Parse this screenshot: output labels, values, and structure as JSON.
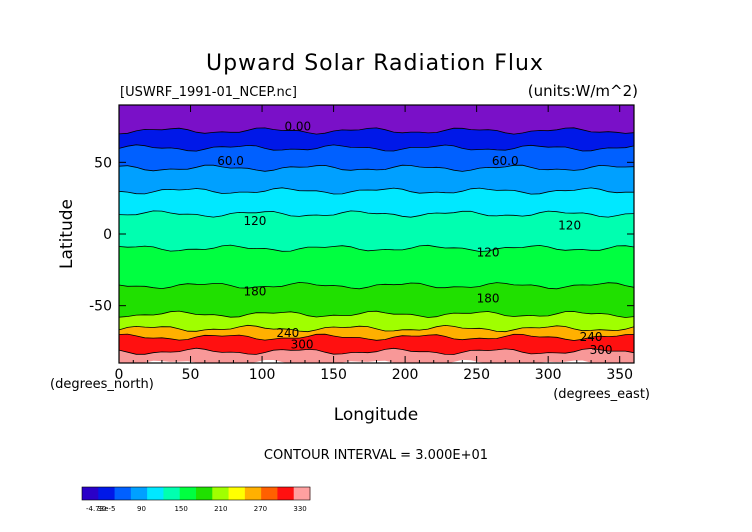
{
  "chart_data": {
    "type": "heatmap",
    "title": "Upward Solar Radiation Flux",
    "file_label": "[USWRF_1991-01_NCEP.nc]",
    "units_label": "(units:W/m^2)",
    "xlabel": "Longitude",
    "x_unit": "(degrees_east)",
    "ylabel": "Latitude",
    "y_unit": "(degrees_north)",
    "xlim": [
      0,
      360
    ],
    "ylim": [
      -90,
      90
    ],
    "x_ticks": [
      "0",
      "50",
      "100",
      "150",
      "200",
      "250",
      "300",
      "350"
    ],
    "y_ticks": [
      "50",
      "0",
      "-50"
    ],
    "contour_interval_text": "CONTOUR INTERVAL = 3.000E+01",
    "contour_labels": [
      {
        "text": "0.00",
        "lon": 125,
        "lat": 75
      },
      {
        "text": "60.0",
        "lon": 78,
        "lat": 51
      },
      {
        "text": "60.0",
        "lon": 270,
        "lat": 51
      },
      {
        "text": "120",
        "lon": 95,
        "lat": 9
      },
      {
        "text": "120",
        "lon": 315,
        "lat": 6
      },
      {
        "text": "120",
        "lon": 258,
        "lat": -13
      },
      {
        "text": "180",
        "lon": 95,
        "lat": -40
      },
      {
        "text": "180",
        "lon": 258,
        "lat": -45
      },
      {
        "text": "240",
        "lon": 118,
        "lat": -69
      },
      {
        "text": "240",
        "lon": 330,
        "lat": -72
      },
      {
        "text": "300",
        "lon": 128,
        "lat": -77
      },
      {
        "text": "300",
        "lon": 337,
        "lat": -81
      }
    ],
    "latitude_bands": [
      {
        "lat_from": 90,
        "lat_to": 72,
        "value": 0
      },
      {
        "lat_from": 72,
        "lat_to": 60,
        "value": 30
      },
      {
        "lat_from": 60,
        "lat_to": 46,
        "value": 60
      },
      {
        "lat_from": 46,
        "lat_to": 30,
        "value": 75
      },
      {
        "lat_from": 30,
        "lat_to": 14,
        "value": 110
      },
      {
        "lat_from": 14,
        "lat_to": -10,
        "value": 140
      },
      {
        "lat_from": -10,
        "lat_to": -36,
        "value": 160
      },
      {
        "lat_from": -36,
        "lat_to": -56,
        "value": 190
      },
      {
        "lat_from": -56,
        "lat_to": -66,
        "value": 215
      },
      {
        "lat_from": -66,
        "lat_to": -72,
        "value": 250
      },
      {
        "lat_from": -72,
        "lat_to": -82,
        "value": 300
      },
      {
        "lat_from": -82,
        "lat_to": -90,
        "value": 335
      }
    ],
    "colorbar": {
      "tick_labels": [
        "-4.73e-5",
        "30",
        "90",
        "150",
        "210",
        "270",
        "330"
      ],
      "tick_values": [
        0,
        30,
        90,
        150,
        210,
        270,
        330
      ],
      "range": [
        0,
        345
      ],
      "colors": [
        "#2a00c8",
        "#0018e8",
        "#0060ff",
        "#00a0ff",
        "#00e8ff",
        "#00ffb0",
        "#00ff40",
        "#20e000",
        "#a0ff00",
        "#ffff00",
        "#ffb000",
        "#ff6000",
        "#ff1010",
        "#ffa0a0"
      ]
    },
    "colors": {
      "polar_top": "#7a10c8",
      "antarctic": "#f89898"
    }
  }
}
